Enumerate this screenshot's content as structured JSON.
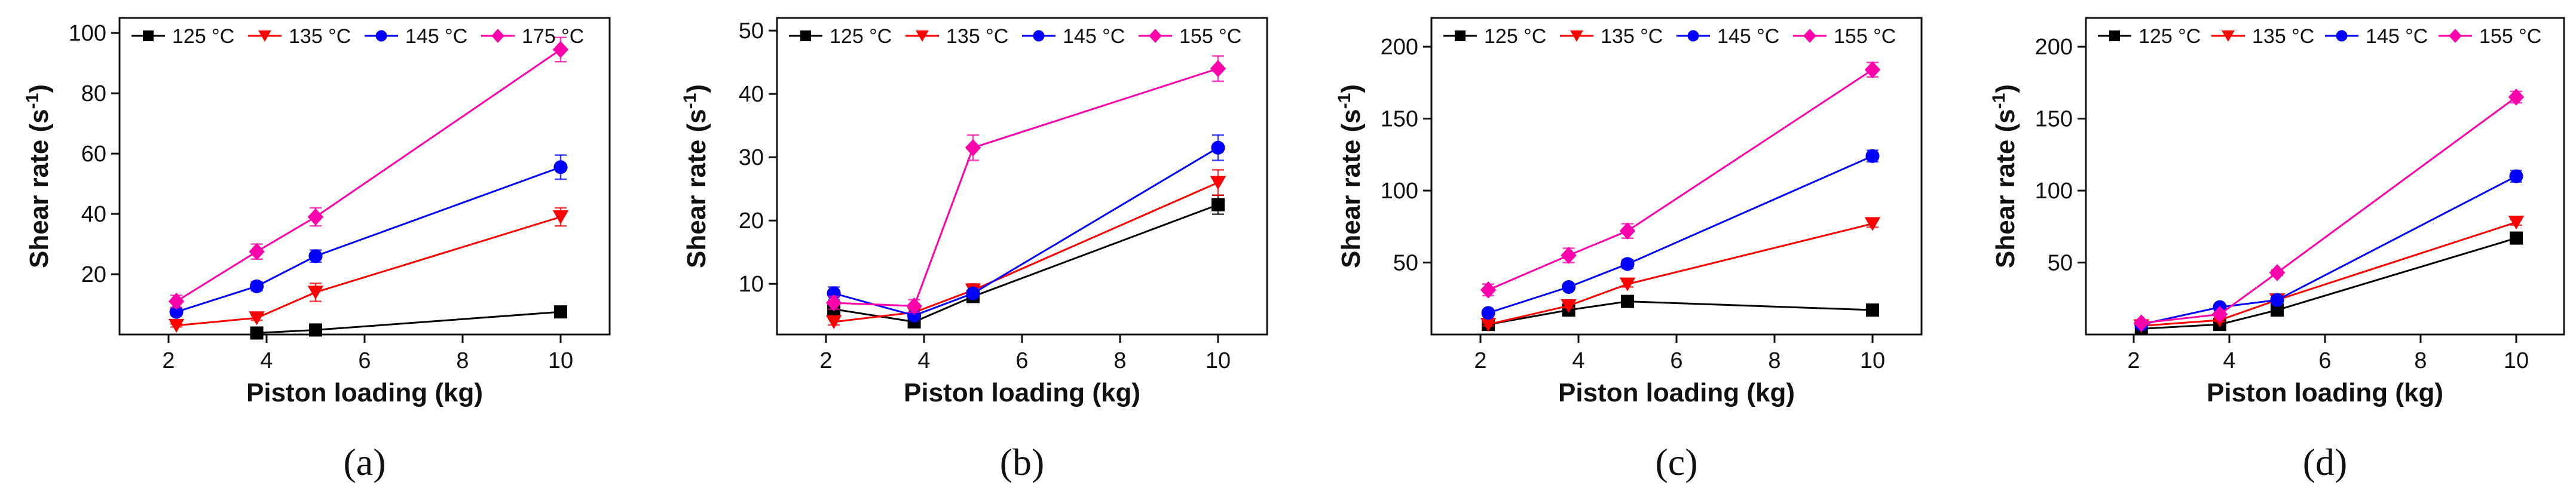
{
  "colors": {
    "125": "#000000",
    "135": "#ff0000",
    "145": "#0000ff",
    "hot": "#ff00aa"
  },
  "chart_data": [
    {
      "type": "line",
      "panel_label": "(a)",
      "xlabel": "Piston loading (kg)",
      "ylabel": "Shear rate (s-1)",
      "xlim": [
        1,
        11
      ],
      "ylim": [
        0,
        105
      ],
      "xticks": [
        2,
        4,
        6,
        8,
        10
      ],
      "yticks": [
        20,
        40,
        60,
        80,
        100
      ],
      "x": [
        2.16,
        3.8,
        5,
        10
      ],
      "series": [
        {
          "name": "125 °C",
          "marker": "square",
          "color": "#000000",
          "values": [
            null,
            0.5,
            1.5,
            7.5
          ],
          "errors": [
            0,
            0.5,
            0.5,
            1
          ]
        },
        {
          "name": "135 °C",
          "marker": "triangle-down",
          "color": "#ff0000",
          "values": [
            3,
            5.5,
            14,
            39
          ],
          "errors": [
            0.5,
            0.8,
            3,
            3
          ]
        },
        {
          "name": "145 °C",
          "marker": "circle",
          "color": "#0000ff",
          "values": [
            7.5,
            16,
            26,
            55.5
          ],
          "errors": [
            1,
            1.5,
            2,
            4
          ]
        },
        {
          "name": "175 °C",
          "marker": "diamond",
          "color": "#ff00aa",
          "values": [
            11,
            27.5,
            39,
            94.5
          ],
          "errors": [
            2,
            2.5,
            3,
            4
          ]
        }
      ]
    },
    {
      "type": "line",
      "panel_label": "(b)",
      "xlabel": "Piston loading (kg)",
      "ylabel": "Shear rate (s-1)",
      "xlim": [
        1,
        11
      ],
      "ylim": [
        2,
        52
      ],
      "xticks": [
        2,
        4,
        6,
        8,
        10
      ],
      "yticks": [
        10,
        20,
        30,
        40,
        50
      ],
      "x": [
        2.16,
        3.8,
        5,
        10
      ],
      "series": [
        {
          "name": "125 °C",
          "marker": "square",
          "color": "#000000",
          "values": [
            6,
            4,
            8,
            22.5
          ],
          "errors": [
            0.5,
            0.5,
            0.5,
            1.5
          ]
        },
        {
          "name": "135 °C",
          "marker": "triangle-down",
          "color": "#ff0000",
          "values": [
            4,
            5.5,
            9,
            26
          ],
          "errors": [
            0.5,
            0.5,
            1,
            2
          ]
        },
        {
          "name": "145 °C",
          "marker": "circle",
          "color": "#0000ff",
          "values": [
            8.5,
            5,
            8.5,
            31.5
          ],
          "errors": [
            1,
            0.5,
            0.5,
            2
          ]
        },
        {
          "name": "155 °C",
          "marker": "diamond",
          "color": "#ff00aa",
          "values": [
            7,
            6.5,
            31.5,
            44
          ],
          "errors": [
            1,
            1,
            2,
            2
          ]
        }
      ]
    },
    {
      "type": "line",
      "panel_label": "(c)",
      "xlabel": "Piston loading (kg)",
      "ylabel": "Shear rate (s-1)",
      "xlim": [
        1,
        11
      ],
      "ylim": [
        0,
        220
      ],
      "xticks": [
        2,
        4,
        6,
        8,
        10
      ],
      "yticks": [
        50,
        100,
        150,
        200
      ],
      "x": [
        2.16,
        3.8,
        5,
        10
      ],
      "series": [
        {
          "name": "125 °C",
          "marker": "square",
          "color": "#000000",
          "values": [
            7,
            17,
            23,
            17
          ],
          "errors": [
            1,
            1,
            1.5,
            1
          ]
        },
        {
          "name": "135 °C",
          "marker": "triangle-down",
          "color": "#ff0000",
          "values": [
            7,
            20,
            35,
            77
          ],
          "errors": [
            1,
            1.5,
            2,
            2.5
          ]
        },
        {
          "name": "145 °C",
          "marker": "circle",
          "color": "#0000ff",
          "values": [
            15,
            33,
            49,
            124
          ],
          "errors": [
            1.5,
            2,
            3,
            4
          ]
        },
        {
          "name": "155 °C",
          "marker": "diamond",
          "color": "#ff00aa",
          "values": [
            31,
            55,
            72,
            184
          ],
          "errors": [
            4,
            5,
            5,
            5
          ]
        }
      ]
    },
    {
      "type": "line",
      "panel_label": "(d)",
      "xlabel": "Piston loading (kg)",
      "ylabel": "Shear rate (s-1)",
      "xlim": [
        1,
        11
      ],
      "ylim": [
        0,
        220
      ],
      "xticks": [
        2,
        4,
        6,
        8,
        10
      ],
      "yticks": [
        50,
        100,
        150,
        200
      ],
      "x": [
        2.16,
        3.8,
        5,
        10
      ],
      "series": [
        {
          "name": "125 °C",
          "marker": "square",
          "color": "#000000",
          "values": [
            4,
            7,
            17,
            67
          ],
          "errors": [
            0.5,
            1,
            1,
            1.5
          ]
        },
        {
          "name": "135 °C",
          "marker": "triangle-down",
          "color": "#ff0000",
          "values": [
            6,
            10,
            24,
            78
          ],
          "errors": [
            0.5,
            1,
            1.5,
            2
          ]
        },
        {
          "name": "145 °C",
          "marker": "circle",
          "color": "#0000ff",
          "values": [
            7,
            19,
            24,
            110
          ],
          "errors": [
            0.8,
            1.5,
            2,
            4
          ]
        },
        {
          "name": "155 °C",
          "marker": "diamond",
          "color": "#ff00aa",
          "values": [
            8,
            14,
            43,
            165
          ],
          "errors": [
            1,
            1.5,
            2,
            4
          ]
        }
      ]
    }
  ]
}
